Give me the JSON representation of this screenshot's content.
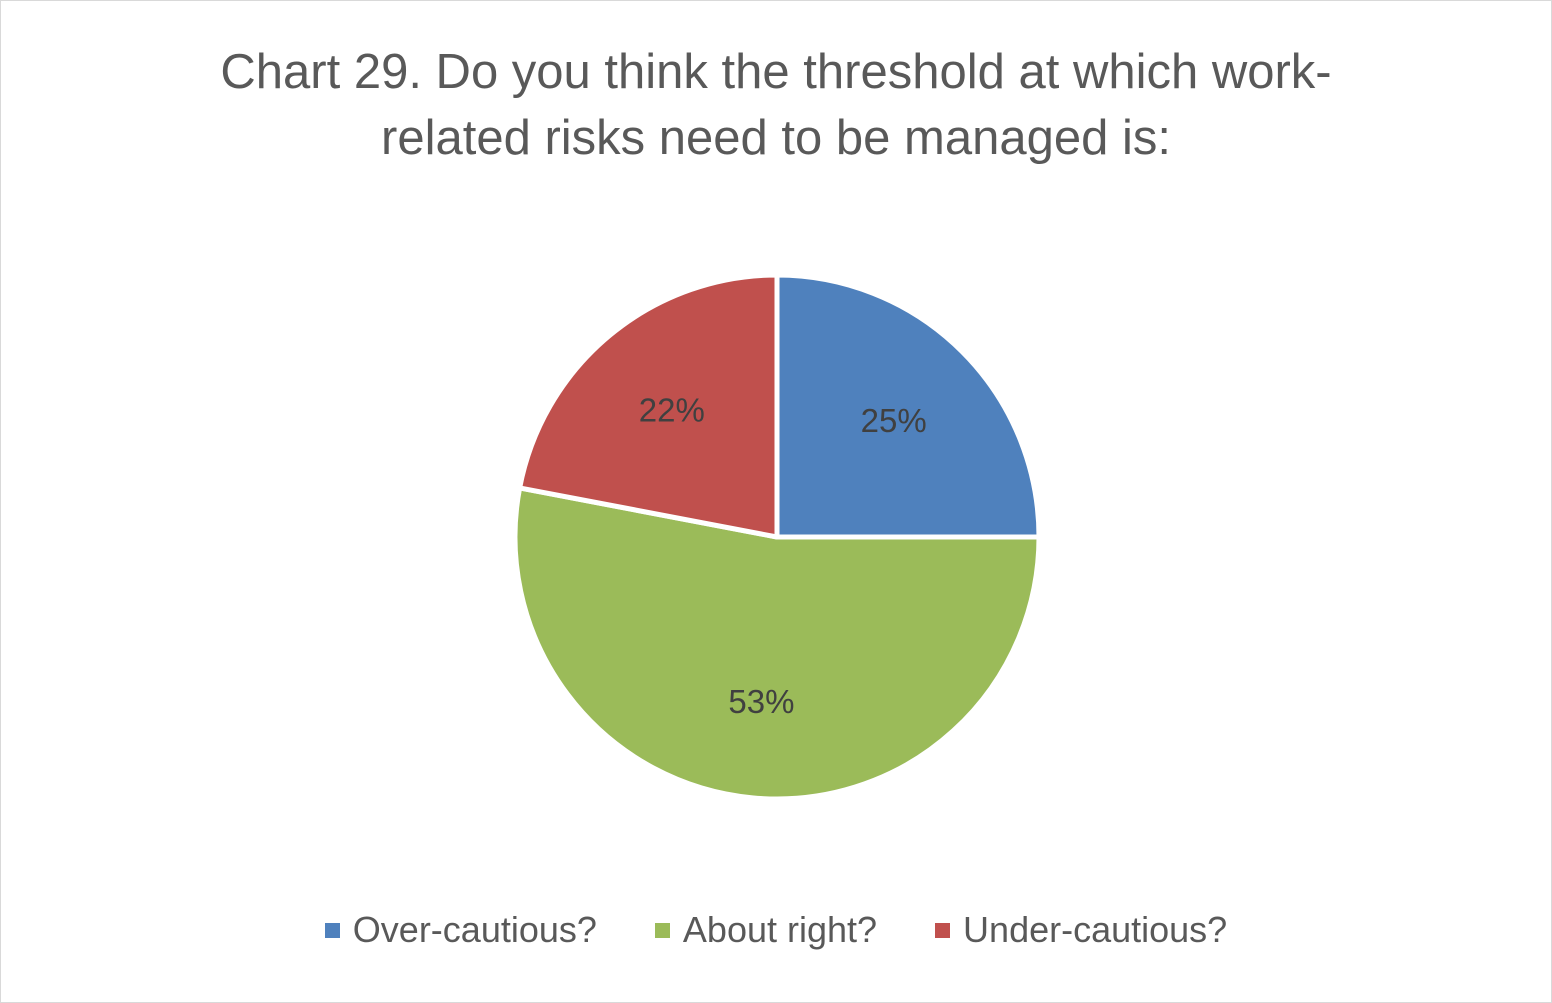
{
  "chart_data": {
    "type": "pie",
    "title_lines": [
      "Chart 29. Do you think the threshold at which work-",
      "related risks need to be managed is:"
    ],
    "categories": [
      "Over-cautious?",
      "About right?",
      "Under-cautious?"
    ],
    "values": [
      25,
      53,
      22
    ],
    "labels": [
      "25%",
      "53%",
      "22%"
    ],
    "colors": [
      "#4f81bd",
      "#9bbb59",
      "#c0504d"
    ],
    "start_angle_deg": 0,
    "direction": "clockwise",
    "legend_position": "bottom"
  }
}
